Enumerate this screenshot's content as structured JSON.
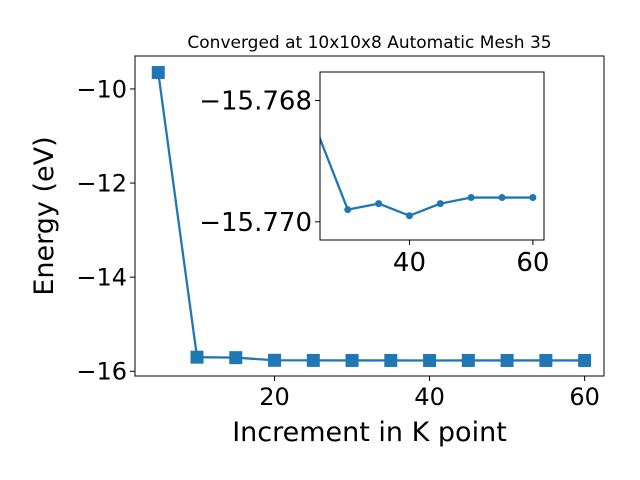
{
  "chart_data": [
    {
      "type": "line",
      "title": "Converged at 10x10x8 Automatic Mesh 35",
      "xlabel": "Increment in K point",
      "ylabel": "Energy (eV)",
      "xlim": [
        2,
        62.5
      ],
      "ylim": [
        -16.1,
        -9.3
      ],
      "xticks": [
        20,
        40,
        60
      ],
      "xtick_labels": [
        "20",
        "40",
        "60"
      ],
      "yticks": [
        -16,
        -14,
        -12,
        -10
      ],
      "ytick_labels": [
        "−16",
        "−14",
        "−12",
        "−10"
      ],
      "marker": "square",
      "color": "#1f77b4",
      "grid": false,
      "series": [
        {
          "x": [
            5,
            10,
            15,
            20,
            25,
            30,
            35,
            40,
            45,
            50,
            55,
            60
          ],
          "y": [
            -9.65,
            -15.7,
            -15.71,
            -15.766,
            -15.7685,
            -15.7698,
            -15.7697,
            -15.7699,
            -15.7697,
            -15.7696,
            -15.7696,
            -15.7696
          ]
        }
      ]
    },
    {
      "type": "line",
      "title": "",
      "xlabel": "",
      "ylabel": "",
      "xlim": [
        25.5,
        61.8
      ],
      "ylim": [
        -15.7703,
        -15.76753
      ],
      "xticks": [
        40,
        60
      ],
      "xtick_labels": [
        "40",
        "60"
      ],
      "yticks": [
        -15.77,
        -15.768
      ],
      "ytick_labels": [
        "−15.770",
        "−15.768"
      ],
      "marker": "circle",
      "color": "#1f77b4",
      "grid": false,
      "series": [
        {
          "x": [
            25,
            30,
            35,
            40,
            45,
            50,
            55,
            60
          ],
          "y": [
            -15.7685,
            -15.7698,
            -15.7697,
            -15.7699,
            -15.7697,
            -15.7696,
            -15.7696,
            -15.7696
          ]
        }
      ]
    }
  ]
}
